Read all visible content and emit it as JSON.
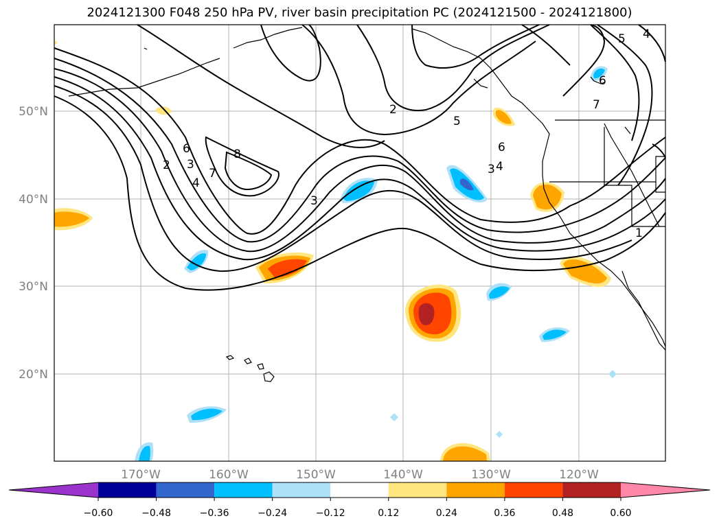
{
  "title": "2024121300 F048 250 hPa PV, river basin precipitation PC (2024121500 - 2024121800)",
  "lon_ticks": [
    "170°W",
    "160°W",
    "150°W",
    "140°W",
    "130°W",
    "120°W"
  ],
  "lat_ticks": [
    "50°N",
    "40°N",
    "30°N",
    "20°N"
  ],
  "contour_labels": [
    "2",
    "3",
    "4",
    "5",
    "6",
    "7",
    "8",
    "1"
  ],
  "colorbar": {
    "ticks": [
      "−0.60",
      "−0.48",
      "−0.36",
      "−0.24",
      "−0.12",
      "0.12",
      "0.24",
      "0.36",
      "0.48",
      "0.60"
    ],
    "colors": [
      "#9933cc",
      "#000099",
      "#3366cc",
      "#00bfff",
      "#aee0f8",
      "#ffffff",
      "#ffe680",
      "#ffa500",
      "#ff4500",
      "#b22222",
      "#ff88aa"
    ]
  },
  "colors": {
    "grid": "#b0b0b0",
    "coast": "#000000",
    "contour": "#000000"
  }
}
